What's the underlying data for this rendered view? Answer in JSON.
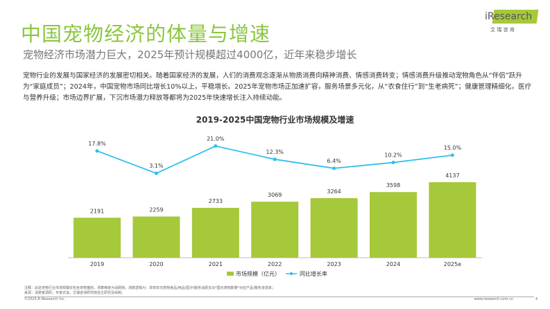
{
  "header": {
    "title": "中国宠物经济的体量与增速",
    "subtitle": "宠物经济市场潜力巨大，2025年预计规模超过4000亿，近年来稳步增长",
    "logo_text": "iResearch",
    "logo_cn": "艾 瑞 咨 询",
    "brand_color": "#8cc63f"
  },
  "body": {
    "paragraph": "宠物行业的发展与国家经济的发展密切相关。随着国家经济的发展，人们的消费观念逐渐从物质消费向精神消费、情感消费转变；情感消费升级推动宠物角色从“伴侣”跃升为“家庭成员”；2024年，中国宠物市场同比增长10%以上，平稳增长。2025年宠物市场正加速扩容，服务场景多元化，从“衣食住行”到“生老病死”；健康管理精细化，医疗与营养升级；市场边界扩展，下沉市场潜力释放等都将为2025年快速增长注入持续动能。"
  },
  "chart_data": {
    "type": "bar+line",
    "title": "2019-2025中国宠物行业市场规模及增速",
    "categories": [
      "2019",
      "2020",
      "2021",
      "2022",
      "2023",
      "2024",
      "2025e"
    ],
    "series": [
      {
        "name": "市场规模（亿元）",
        "type": "bar",
        "color": "#a5c93a",
        "values": [
          2191,
          2259,
          2733,
          3069,
          3264,
          3598,
          4137
        ]
      },
      {
        "name": "同比增长率",
        "type": "line",
        "color": "#2ec0ee",
        "values": [
          17.8,
          3.1,
          21.0,
          12.3,
          6.4,
          10.2,
          15.0
        ],
        "labels": [
          "17.8%",
          "3.1%",
          "21.0%",
          "12.3%",
          "6.4%",
          "10.2%",
          "15.0%"
        ]
      }
    ],
    "legend": "bottom",
    "grid": false
  },
  "footer": {
    "note": "注释：此处宠物行业市场规模仅包含宠物猫狗，测算维度为消费侧，测算逻辑为：单宠年均宠物食品/用品/医疗/服务消费支出*国内宠物数量*对应产品/服务渗透率；",
    "source": "来源：消费者调研，专家访谈，艾瑞咨询研究院自主研究及绘制。",
    "copyright": "©2025.8 iResearch Inc.",
    "url": "www.iresearch.com.cn",
    "page": "4"
  }
}
